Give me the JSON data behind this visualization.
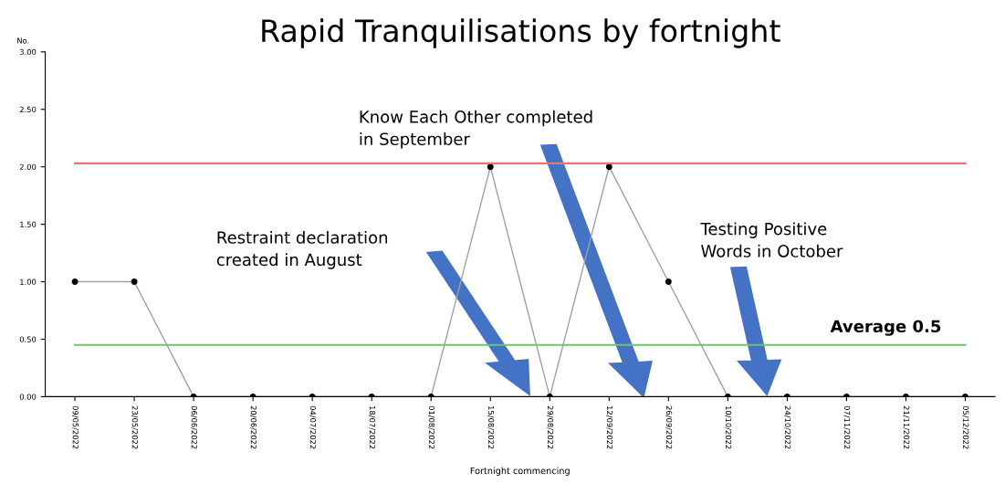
{
  "chart_data": {
    "type": "line",
    "title": "Rapid Tranquilisations by fortnight",
    "xlabel": "Fortnight commencing",
    "ylabel": "No.",
    "categories": [
      "09/05/2022",
      "23/05/2022",
      "06/06/2022",
      "20/06/2022",
      "04/07/2022",
      "18/07/2022",
      "01/08/2022",
      "15/08/2022",
      "29/08/2022",
      "12/09/2022",
      "26/09/2022",
      "10/10/2022",
      "24/10/2022",
      "07/11/2022",
      "21/11/2022",
      "05/12/2022"
    ],
    "series": [
      {
        "color": "#a0a0a0",
        "values": [
          1,
          1,
          0,
          0,
          0,
          0,
          0,
          2,
          0,
          2,
          1,
          0,
          0,
          0,
          0,
          0
        ]
      }
    ],
    "marker": "circle",
    "grid": false,
    "legend": false,
    "ylim": [
      0,
      3
    ],
    "yticks": [
      {
        "value": 0,
        "label": "0.00"
      },
      {
        "value": 0.5,
        "label": "0.50"
      },
      {
        "value": 1,
        "label": "1.00"
      },
      {
        "value": 1.5,
        "label": "1.50"
      },
      {
        "value": 2,
        "label": "2.00"
      },
      {
        "value": 2.5,
        "label": "2.50"
      },
      {
        "value": 3,
        "label": "3.00"
      }
    ],
    "ref_lines": [
      {
        "axis": "y",
        "value": 2.03,
        "label": null,
        "color": "#f07070"
      },
      {
        "axis": "y",
        "value": 0.45,
        "label": "Average 0.5",
        "color": "#6cc46c"
      }
    ],
    "annotations": [
      "Restraint declaration\ncreated in August",
      "Know Each Other completed\nin September",
      "Testing Positive\nWords in October"
    ]
  }
}
